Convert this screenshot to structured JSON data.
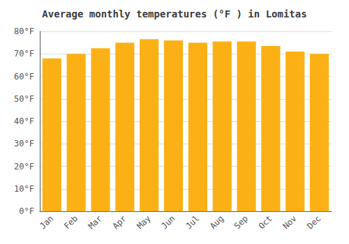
{
  "chart_data": {
    "type": "bar",
    "title": "Average monthly temperatures (°F ) in Lomitas",
    "categories": [
      "Jan",
      "Feb",
      "Mar",
      "Apr",
      "May",
      "Jun",
      "Jul",
      "Aug",
      "Sep",
      "Oct",
      "Nov",
      "Dec"
    ],
    "values": [
      68,
      70,
      72.5,
      75,
      76.5,
      76,
      75,
      75.5,
      75.5,
      73.5,
      71,
      70
    ],
    "color": "#FBB115",
    "ylim": [
      0,
      80
    ],
    "yticks": [
      {
        "value": 0,
        "label": "0°F"
      },
      {
        "value": 10,
        "label": "10°F"
      },
      {
        "value": 20,
        "label": "20°F"
      },
      {
        "value": 30,
        "label": "30°F"
      },
      {
        "value": 40,
        "label": "40°F"
      },
      {
        "value": 50,
        "label": "50°F"
      },
      {
        "value": 60,
        "label": "60°F"
      },
      {
        "value": 70,
        "label": "70°F"
      },
      {
        "value": 80,
        "label": "80°F"
      }
    ],
    "grid": true
  }
}
